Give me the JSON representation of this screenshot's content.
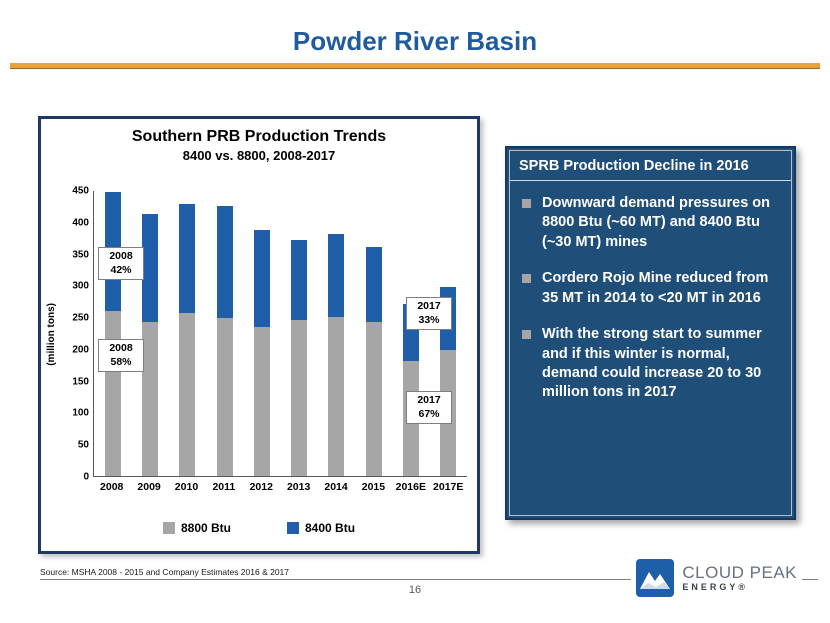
{
  "title": "Powder River Basin",
  "chart_data": {
    "type": "bar",
    "stacked": true,
    "title": "Southern PRB Production Trends",
    "subtitle": "8400 vs. 8800, 2008-2017",
    "ylabel": "(million tons)",
    "ylim": [
      0,
      450
    ],
    "yticks": [
      0,
      50,
      100,
      150,
      200,
      250,
      300,
      350,
      400,
      450
    ],
    "grid": false,
    "legend_position": "bottom",
    "categories": [
      "2008",
      "2009",
      "2010",
      "2011",
      "2012",
      "2013",
      "2014",
      "2015",
      "2016E",
      "2017E"
    ],
    "series": [
      {
        "name": "8800 Btu",
        "color": "#a6a6a6",
        "values": [
          260,
          243,
          257,
          250,
          235,
          247,
          251,
          243,
          182,
          199
        ]
      },
      {
        "name": "8400 Btu",
        "color": "#1f5fa9",
        "values": [
          188,
          170,
          172,
          176,
          153,
          126,
          131,
          119,
          90,
          99
        ]
      }
    ],
    "annotations": [
      {
        "line1": "2008",
        "line2": "42%"
      },
      {
        "line1": "2008",
        "line2": "58%"
      },
      {
        "line1": "2017",
        "line2": "33%"
      },
      {
        "line1": "2017",
        "line2": "67%"
      }
    ]
  },
  "info_panel": {
    "header": "SPRB Production Decline in 2016",
    "bullets": [
      "Downward demand pressures on 8800 Btu (~60 MT) and 8400 Btu (~30 MT) mines",
      "Cordero Rojo Mine reduced from 35 MT in 2014 to <20 MT in 2016",
      "With the strong start to summer and if this winter is normal, demand could increase 20 to 30 million tons in 2017"
    ]
  },
  "footer": {
    "source": "Source:  MSHA  2008 - 2015 and Company Estimates 2016 & 2017",
    "page_number": "16",
    "logo_line1": "CLOUD PEAK",
    "logo_line2": "ENERGY®"
  },
  "colors": {
    "title_blue": "#1f5c9e",
    "accent_orange": "#e9a23b",
    "panel_blue": "#1f4e79",
    "border_navy": "#1f3864",
    "bar_gray": "#a6a6a6",
    "bar_blue": "#1f5fa9"
  }
}
